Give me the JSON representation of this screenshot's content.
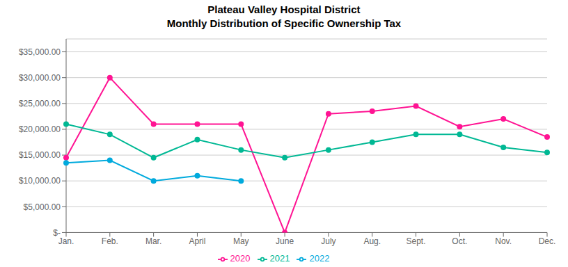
{
  "chart_data": {
    "type": "line",
    "title": "Plateau Valley Hospital District",
    "subtitle": "Monthly Distribution of Specific Ownership Tax",
    "categories": [
      "Jan.",
      "Feb.",
      "Mar.",
      "April",
      "May",
      "June",
      "July",
      "Aug.",
      "Sept.",
      "Oct.",
      "Nov.",
      "Dec."
    ],
    "series": [
      {
        "name": "2020",
        "color": "#FF1493",
        "marker": "circle",
        "values": [
          14500,
          30000,
          21000,
          21000,
          21000,
          0,
          23000,
          23500,
          24500,
          20500,
          22000,
          18500
        ]
      },
      {
        "name": "2021",
        "color": "#00B894",
        "marker": "circle",
        "values": [
          21000,
          19000,
          14500,
          18000,
          16000,
          14500,
          16000,
          17500,
          19000,
          19000,
          16500,
          15500
        ]
      },
      {
        "name": "2022",
        "color": "#00AADD",
        "marker": "circle",
        "values": [
          13500,
          14000,
          10000,
          11000,
          10000,
          null,
          null,
          null,
          null,
          null,
          null,
          null
        ]
      }
    ],
    "ylim": [
      0,
      37500
    ],
    "yticks": [
      {
        "value": 0,
        "label": "$-"
      },
      {
        "value": 5000,
        "label": "$5,000.00"
      },
      {
        "value": 10000,
        "label": "$10,000.00"
      },
      {
        "value": 15000,
        "label": "$15,000.00"
      },
      {
        "value": 20000,
        "label": "$20,000.00"
      },
      {
        "value": 25000,
        "label": "$25,000.00"
      },
      {
        "value": 30000,
        "label": "$30,000.00"
      },
      {
        "value": 35000,
        "label": "$35,000.00"
      }
    ],
    "grid": true,
    "legend": "bottom"
  }
}
